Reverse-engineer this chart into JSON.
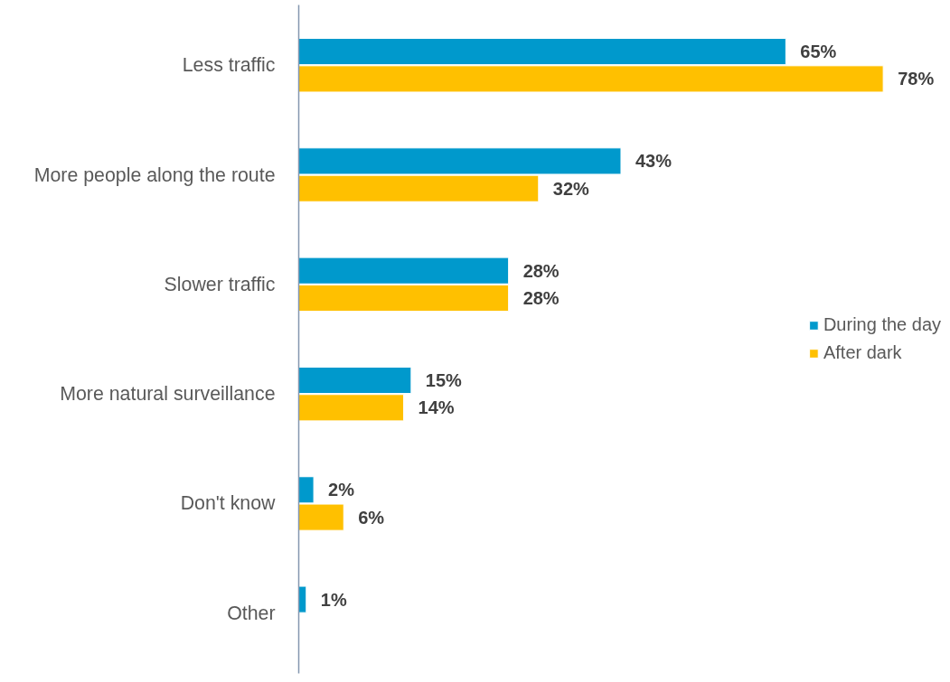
{
  "chart_data": {
    "type": "bar",
    "orientation": "horizontal",
    "categories": [
      "Less traffic",
      "More people along the route",
      "Slower traffic",
      "More natural surveillance",
      "Don't know",
      "Other"
    ],
    "series": [
      {
        "name": "During the day",
        "color": "#0099cc",
        "values": [
          65,
          43,
          28,
          15,
          2,
          1
        ],
        "value_labels": [
          "65%",
          "43%",
          "28%",
          "15%",
          "2%",
          "1%"
        ]
      },
      {
        "name": "After dark",
        "color": "#ffc000",
        "values": [
          78,
          32,
          28,
          14,
          6,
          null
        ],
        "value_labels": [
          "78%",
          "32%",
          "28%",
          "14%",
          "6%",
          null
        ]
      }
    ],
    "legend": "right",
    "grid": false,
    "tick_labels": "y"
  }
}
